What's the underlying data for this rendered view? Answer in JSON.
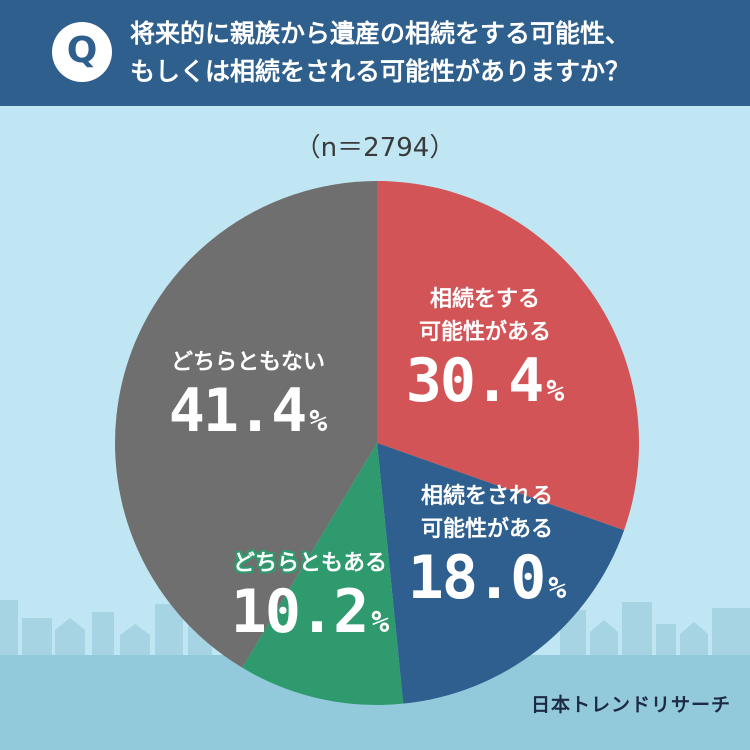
{
  "header": {
    "q_mark": "Q",
    "question_lines": [
      "将来的に親族から遺産の相続をする可能性、",
      "もしくは相続をされる可能性がありますか？"
    ]
  },
  "sample_size": "（n＝2794）",
  "chart_data": {
    "type": "pie",
    "start": "12 o'clock, clockwise",
    "unit": "%",
    "slices": [
      {
        "label_lines": [
          "相続をする",
          "可能性がある"
        ],
        "value": 30.4,
        "value_text": "30.4",
        "color": "#d25457"
      },
      {
        "label_lines": [
          "相続をされる",
          "可能性がある"
        ],
        "value": 18.0,
        "value_text": "18.0",
        "color": "#2e5f8e"
      },
      {
        "label_lines": [
          "どちらともある"
        ],
        "value": 10.2,
        "value_text": "10.2",
        "color": "#2e9a6e"
      },
      {
        "label_lines": [
          "どちらともない"
        ],
        "value": 41.4,
        "value_text": "41.4",
        "color": "#6f6f6f"
      }
    ]
  },
  "colors": {
    "header_bg": "#2f5f8d",
    "background": "#bfe6f2",
    "city": "#a7d4e3",
    "ground": "#93cadb"
  },
  "footer": {
    "logo": "日本トレンドリサーチ"
  }
}
